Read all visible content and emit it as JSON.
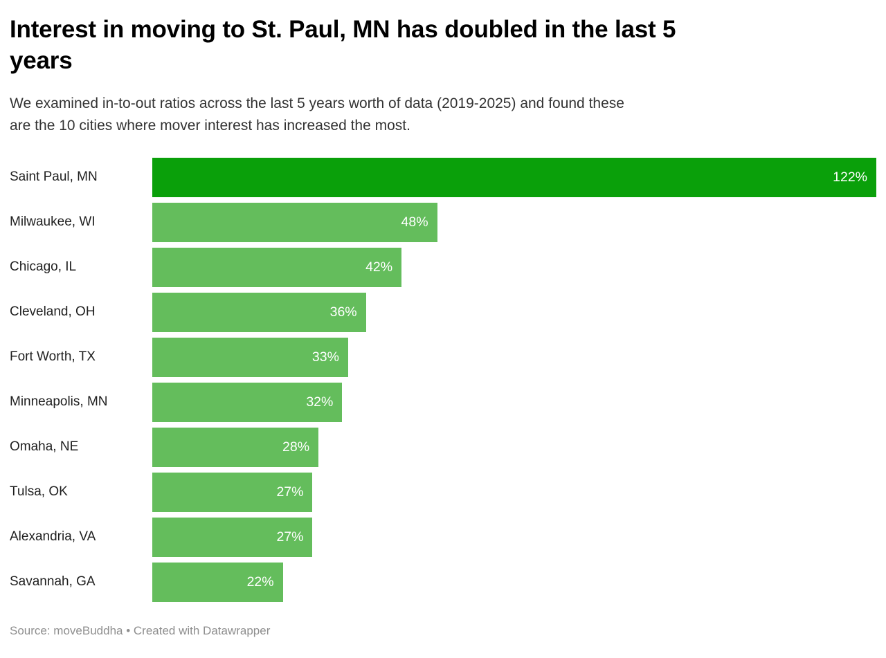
{
  "header": {
    "title": "Interest in moving to St. Paul, MN has doubled in the last 5 years",
    "title_lines": [
      "Interest in moving to St. Paul, MN has doubled in the last 5",
      "years"
    ],
    "subtitle": "We examined in-to-out ratios across the last 5 years worth of data (2019-2025) and found these are the 10 cities where mover interest has increased the most.",
    "subtitle_lines": [
      "We examined in-to-out ratios across the last 5 years worth of data (2019-2025) and found these",
      "are the 10 cities where mover interest has increased the most."
    ]
  },
  "footer": {
    "text": "Source: moveBuddha • Created with Datawrapper"
  },
  "colors": {
    "highlight_bar": "#0aa00a",
    "bar": "#64bd5c",
    "title_text": "#000000",
    "subtitle_text": "#333333",
    "category_text": "#1f1f1f",
    "value_text": "#ffffff",
    "footer_text": "#8e8e8e",
    "background": "#ffffff"
  },
  "chart_data": {
    "type": "bar",
    "orientation": "horizontal",
    "title": "Interest in moving to St. Paul, MN has doubled in the last 5 years",
    "subtitle": "We examined in-to-out ratios across the last 5 years worth of data (2019-2025) and found these are the 10 cities where mover interest has increased the most.",
    "categories": [
      "Saint Paul, MN",
      "Milwaukee, WI",
      "Chicago, IL",
      "Cleveland, OH",
      "Fort Worth, TX",
      "Minneapolis, MN",
      "Omaha, NE",
      "Tulsa, OK",
      "Alexandria, VA",
      "Savannah, GA"
    ],
    "values": [
      122,
      48,
      42,
      36,
      33,
      32,
      28,
      27,
      27,
      22
    ],
    "value_labels": [
      "122%",
      "48%",
      "42%",
      "36%",
      "33%",
      "32%",
      "28%",
      "27%",
      "27%",
      "22%"
    ],
    "highlighted_index": 0,
    "xlabel": "",
    "ylabel": "",
    "xlim": [
      0,
      122
    ],
    "grid": false,
    "legend": false,
    "value_label_position": "inside-end",
    "source": "moveBuddha",
    "credit": "Created with Datawrapper"
  }
}
